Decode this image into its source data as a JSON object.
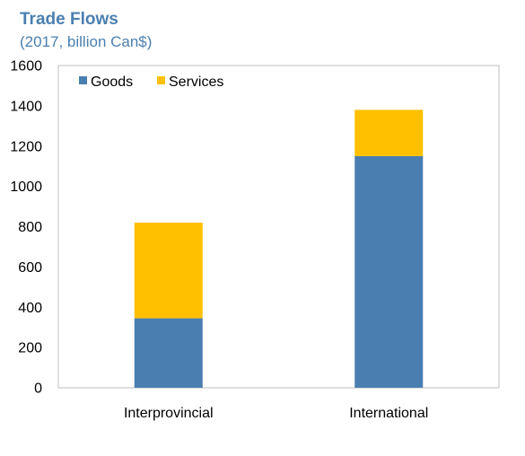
{
  "chart_data": {
    "type": "bar",
    "stacked": true,
    "title": "Trade Flows",
    "subtitle": "(2017, billion Can$)",
    "categories": [
      "Interprovincial",
      "International"
    ],
    "series": [
      {
        "name": "Goods",
        "values": [
          345,
          1150
        ],
        "color": "#4a7eb0"
      },
      {
        "name": "Services",
        "values": [
          475,
          230
        ],
        "color": "#ffc000"
      }
    ],
    "ylim": [
      0,
      1600
    ],
    "yticks": [
      0,
      200,
      400,
      600,
      800,
      1000,
      1200,
      1400,
      1600
    ],
    "xlabel": "",
    "ylabel": "",
    "grid": false,
    "legend_position": "top-left"
  }
}
